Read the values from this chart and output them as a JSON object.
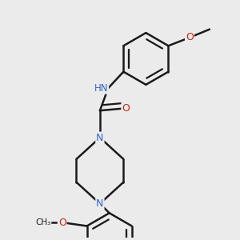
{
  "background_color": "#ebebeb",
  "bond_color": "#1a1a1a",
  "bond_width": 1.8,
  "figsize": [
    3.0,
    3.0
  ],
  "dpi": 100,
  "colors": {
    "N": "#3366cc",
    "O": "#cc2200",
    "C": "#1a1a1a",
    "H": "#7aada8"
  },
  "xlim": [
    -0.5,
    1.5
  ],
  "ylim": [
    -0.3,
    1.7
  ]
}
